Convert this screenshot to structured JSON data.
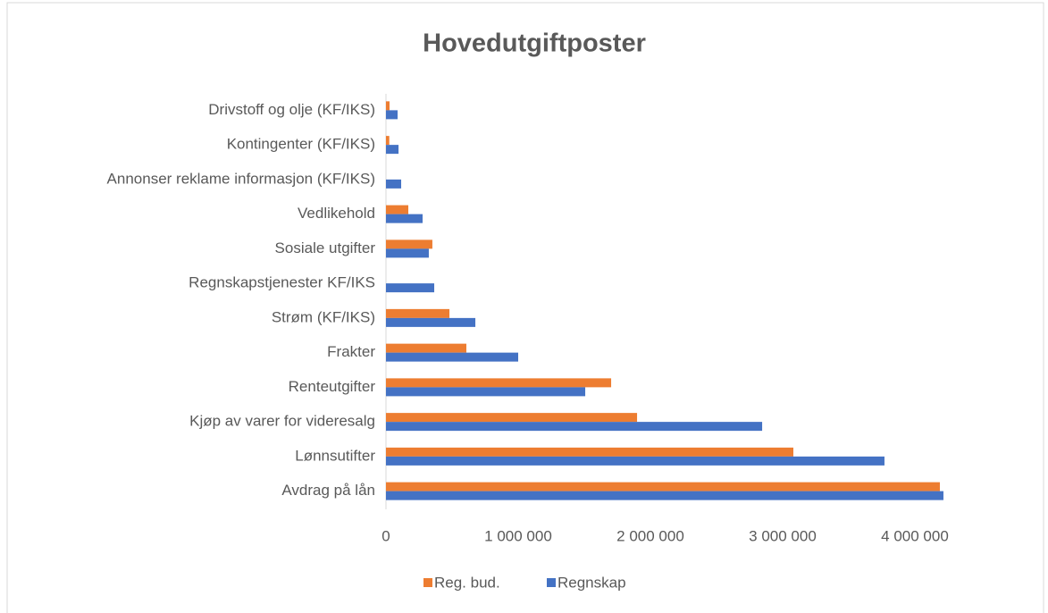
{
  "chart_data": {
    "type": "hbar",
    "title": "Hovedutgiftposter",
    "categories": [
      "Drivstoff og olje (KF/IKS)",
      "Kontingenter (KF/IKS)",
      "Annonser reklame informasjon (KF/IKS)",
      "Vedlikehold ",
      "Sosiale utgifter",
      "Regnskapstjenester KF/IKS",
      "Strøm (KF/IKS)",
      "Frakter",
      "Renteutgifter",
      "Kjøp av varer for videresalg",
      "Lønnsutifter",
      "Avdrag på lån"
    ],
    "series": [
      {
        "name": "Reg. bud.",
        "color": "#ed7d31",
        "values": [
          27000,
          25000,
          0,
          169000,
          351000,
          0,
          480000,
          608000,
          1703000,
          1899000,
          3081000,
          4189000
        ]
      },
      {
        "name": "Regnskap",
        "color": "#4472c4",
        "values": [
          88000,
          95000,
          115000,
          277000,
          324000,
          365000,
          676000,
          1000000,
          1507000,
          2845000,
          3770000,
          4216000
        ]
      }
    ],
    "xlim": [
      0,
      4300000
    ],
    "xticks": [
      0,
      {
        "value": 1000000,
        "label": "1 000 000"
      },
      {
        "value": 2000000,
        "label": "2 000 000"
      },
      {
        "value": 3000000,
        "label": "3 000 000"
      },
      {
        "value": 4000000,
        "label": "4 000 000"
      }
    ],
    "legend": "bottom"
  }
}
